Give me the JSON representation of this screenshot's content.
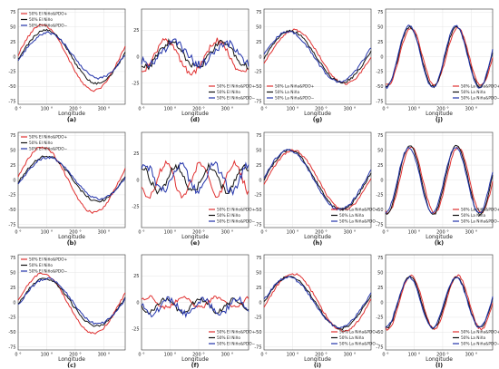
{
  "chart_data": [
    {
      "id": "a",
      "panel_label": "(a)",
      "type": "line",
      "xlabel": "Longitude",
      "xticks": [
        "0 °",
        "100 °",
        "200 °",
        "300 °"
      ],
      "yticks": [
        "75",
        "50",
        "25",
        "0",
        "-25",
        "-50",
        "-75"
      ],
      "ylim": [
        -80,
        80
      ],
      "legend_placement": "top-left",
      "waves": 1,
      "series": [
        {
          "name": "50% El Niño&PDO+",
          "color": "#e03030",
          "amp": 55,
          "phase": 0,
          "offset": 2,
          "noise": 2
        },
        {
          "name": "50% El Niño",
          "color": "#111111",
          "amp": 45,
          "phase": 12,
          "offset": 0,
          "noise": 2
        },
        {
          "name": "50% El Niño&PDO−",
          "color": "#2233aa",
          "amp": 38,
          "phase": 18,
          "offset": -2,
          "noise": 2
        }
      ]
    },
    {
      "id": "d",
      "panel_label": "(d)",
      "type": "line",
      "xlabel": "Longitude",
      "xticks": [
        "0 °",
        "100 °",
        "200 °",
        "300 °"
      ],
      "yticks": [
        "25",
        "0",
        "-25"
      ],
      "ylim": [
        -45,
        45
      ],
      "legend_placement": "bottom-right",
      "waves": 2,
      "series": [
        {
          "name": "50% El Niño&PDO+",
          "color": "#e03030",
          "amp": 15,
          "phase": 0,
          "offset": 0,
          "noise": 3
        },
        {
          "name": "50% El Niño",
          "color": "#111111",
          "amp": 12,
          "phase": 18,
          "offset": -2,
          "noise": 3
        },
        {
          "name": "50% El Niño&PDO−",
          "color": "#2233aa",
          "amp": 10,
          "phase": 30,
          "offset": -3,
          "noise": 4
        }
      ]
    },
    {
      "id": "g",
      "panel_label": "(g)",
      "type": "line",
      "xlabel": "Longitude",
      "xticks": [
        "0 °",
        "100 °",
        "200 °",
        "300 °"
      ],
      "yticks": [
        "75",
        "50",
        "25",
        "0",
        "-25",
        "-50",
        "-75"
      ],
      "ylim": [
        -80,
        80
      ],
      "legend_placement": "bottom-left",
      "waves": 1,
      "series": [
        {
          "name": "50% La Niña&PDO+",
          "color": "#e03030",
          "amp": 45,
          "phase": 20,
          "offset": 0,
          "noise": 2
        },
        {
          "name": "50% La Niña",
          "color": "#111111",
          "amp": 43,
          "phase": 8,
          "offset": 0,
          "noise": 2
        },
        {
          "name": "50% La Niña&PDO−",
          "color": "#2233aa",
          "amp": 42,
          "phase": 0,
          "offset": 0,
          "noise": 2
        }
      ]
    },
    {
      "id": "j",
      "panel_label": "(j)",
      "type": "line",
      "xlabel": "Longitude",
      "xticks": [
        "0 °",
        "100 °",
        "200 °",
        "300 °"
      ],
      "yticks": [
        "75",
        "50",
        "25",
        "0",
        "-25",
        "-50",
        "-75"
      ],
      "ylim": [
        -80,
        80
      ],
      "legend_placement": "bottom-right",
      "waves": 2.2,
      "series": [
        {
          "name": "50% La Niña&PDO+",
          "color": "#e03030",
          "amp": 48,
          "phase": 4,
          "offset": 0,
          "noise": 2
        },
        {
          "name": "50% La Niña",
          "color": "#111111",
          "amp": 50,
          "phase": 0,
          "offset": 0,
          "noise": 2
        },
        {
          "name": "50% La Niña&PDO−",
          "color": "#2233aa",
          "amp": 52,
          "phase": -2,
          "offset": 0,
          "noise": 2
        }
      ]
    },
    {
      "id": "b",
      "panel_label": "(b)",
      "type": "line",
      "xlabel": "Longitude",
      "xticks": [
        "0 °",
        "100 °",
        "200 °",
        "300 °"
      ],
      "yticks": [
        "75",
        "50",
        "25",
        "0",
        "-25",
        "-50",
        "-75"
      ],
      "ylim": [
        -80,
        80
      ],
      "legend_placement": "top-left",
      "waves": 1,
      "series": [
        {
          "name": "50% El Niño&PDO+",
          "color": "#e03030",
          "amp": 55,
          "phase": 0,
          "offset": 0,
          "noise": 2
        },
        {
          "name": "50% El Niño",
          "color": "#111111",
          "amp": 38,
          "phase": 15,
          "offset": -2,
          "noise": 2
        },
        {
          "name": "50% El Niño&PDO−",
          "color": "#2233aa",
          "amp": 35,
          "phase": 20,
          "offset": -3,
          "noise": 2
        }
      ]
    },
    {
      "id": "e",
      "panel_label": "(e)",
      "type": "line",
      "xlabel": "Longitude",
      "xticks": [
        "0 °",
        "100 °",
        "200 °",
        "300 °"
      ],
      "yticks": [
        "25",
        "0",
        "-25"
      ],
      "ylim": [
        -45,
        45
      ],
      "legend_placement": "bottom-right",
      "waves": 3,
      "series": [
        {
          "name": "50% El Niño&PDO+",
          "color": "#e03030",
          "amp": 15,
          "phase": 0,
          "offset": 0,
          "noise": 3
        },
        {
          "name": "50% El Niño",
          "color": "#111111",
          "amp": 12,
          "phase": 35,
          "offset": -1,
          "noise": 3
        },
        {
          "name": "50% El Niño&PDO−",
          "color": "#2233aa",
          "amp": 12,
          "phase": 50,
          "offset": -2,
          "noise": 4
        }
      ]
    },
    {
      "id": "h",
      "panel_label": "(h)",
      "type": "line",
      "xlabel": "Longitude",
      "xticks": [
        "0 °",
        "100 °",
        "200 °",
        "300 °"
      ],
      "yticks": [
        "75",
        "50",
        "25",
        "0",
        "-25",
        "-50",
        "-75"
      ],
      "ylim": [
        -80,
        80
      ],
      "legend_placement": "bottom-right",
      "waves": 1,
      "series": [
        {
          "name": "50% La Niña&PDO+",
          "color": "#e03030",
          "amp": 50,
          "phase": 15,
          "offset": 0,
          "noise": 2
        },
        {
          "name": "50% La Niña",
          "color": "#111111",
          "amp": 50,
          "phase": 5,
          "offset": 0,
          "noise": 2
        },
        {
          "name": "50% La Niña&PDO−",
          "color": "#2233aa",
          "amp": 50,
          "phase": 0,
          "offset": 0,
          "noise": 2
        }
      ]
    },
    {
      "id": "k",
      "panel_label": "(k)",
      "type": "line",
      "xlabel": "Longitude",
      "xticks": [
        "0 °",
        "100 °",
        "200 °",
        "300 °"
      ],
      "yticks": [
        "75",
        "50",
        "25",
        "0",
        "-25",
        "-50",
        "-75"
      ],
      "ylim": [
        -80,
        80
      ],
      "legend_placement": "bottom-right",
      "waves": 2.2,
      "series": [
        {
          "name": "50% La Niña&PDO+",
          "color": "#e03030",
          "amp": 55,
          "phase": 5,
          "offset": 0,
          "noise": 2
        },
        {
          "name": "50% La Niña",
          "color": "#111111",
          "amp": 58,
          "phase": 0,
          "offset": 0,
          "noise": 2
        },
        {
          "name": "50% La Niña&PDO−",
          "color": "#2233aa",
          "amp": 55,
          "phase": -3,
          "offset": 0,
          "noise": 2
        }
      ]
    },
    {
      "id": "c",
      "panel_label": "(c)",
      "type": "line",
      "xlabel": "Longitude",
      "xticks": [
        "0 °",
        "100 °",
        "200 °",
        "300 °"
      ],
      "yticks": [
        "75",
        "50",
        "25",
        "0",
        "-25",
        "-50",
        "-75"
      ],
      "ylim": [
        -80,
        80
      ],
      "legend_placement": "top-left",
      "waves": 1,
      "series": [
        {
          "name": "50% El Niño&PDO+",
          "color": "#e03030",
          "amp": 50,
          "phase": 0,
          "offset": 2,
          "noise": 2
        },
        {
          "name": "50% El Niño",
          "color": "#111111",
          "amp": 40,
          "phase": 10,
          "offset": 0,
          "noise": 2
        },
        {
          "name": "50% El Niño&PDO−",
          "color": "#2233aa",
          "amp": 38,
          "phase": 15,
          "offset": -2,
          "noise": 2
        }
      ]
    },
    {
      "id": "f",
      "panel_label": "(f)",
      "type": "line",
      "xlabel": "Longitude",
      "xticks": [
        "0 °",
        "100 °",
        "200 °",
        "300 °"
      ],
      "yticks": [
        "25",
        "0",
        "-25"
      ],
      "ylim": [
        -45,
        45
      ],
      "legend_placement": "bottom-right",
      "waves": 3,
      "series": [
        {
          "name": "50% El Niño&PDO+",
          "color": "#e03030",
          "amp": 5,
          "phase": 60,
          "offset": 0,
          "noise": 2
        },
        {
          "name": "50% El Niño",
          "color": "#111111",
          "amp": 6,
          "phase": 0,
          "offset": 3,
          "noise": 2
        },
        {
          "name": "50% El Niño&PDO−",
          "color": "#2233aa",
          "amp": 7,
          "phase": 10,
          "offset": 4,
          "noise": 3
        }
      ]
    },
    {
      "id": "i",
      "panel_label": "(i)",
      "type": "line",
      "xlabel": "Longitude",
      "xticks": [
        "0 °",
        "100 °",
        "200 °",
        "300 °"
      ],
      "yticks": [
        "75",
        "50",
        "25",
        "0",
        "-25",
        "-50",
        "-75"
      ],
      "ylim": [
        -80,
        80
      ],
      "legend_placement": "bottom-right",
      "waves": 1,
      "series": [
        {
          "name": "50% La Niña&PDO+",
          "color": "#e03030",
          "amp": 48,
          "phase": 15,
          "offset": 0,
          "noise": 2
        },
        {
          "name": "50% La Niña",
          "color": "#111111",
          "amp": 44,
          "phase": 5,
          "offset": 0,
          "noise": 2
        },
        {
          "name": "50% La Niña&PDO−",
          "color": "#2233aa",
          "amp": 42,
          "phase": 0,
          "offset": 0,
          "noise": 2
        }
      ]
    },
    {
      "id": "l",
      "panel_label": "(l)",
      "type": "line",
      "xlabel": "Longitude",
      "xticks": [
        "0 °",
        "100 °",
        "200 °",
        "300 °"
      ],
      "yticks": [
        "75",
        "50",
        "25",
        "0",
        "-25",
        "-50",
        "-75"
      ],
      "ylim": [
        -80,
        80
      ],
      "legend_placement": "bottom-right",
      "waves": 2.2,
      "series": [
        {
          "name": "50% La Niña&PDO+",
          "color": "#e03030",
          "amp": 45,
          "phase": 4,
          "offset": 0,
          "noise": 2
        },
        {
          "name": "50% La Niña",
          "color": "#111111",
          "amp": 43,
          "phase": 0,
          "offset": 0,
          "noise": 2
        },
        {
          "name": "50% La Niña&PDO−",
          "color": "#2233aa",
          "amp": 42,
          "phase": -2,
          "offset": 0,
          "noise": 2
        }
      ]
    }
  ]
}
